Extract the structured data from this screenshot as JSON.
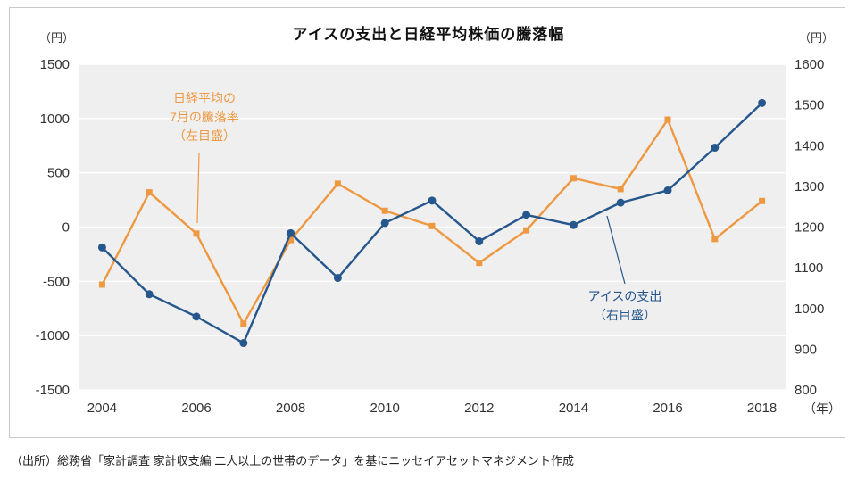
{
  "title": "アイスの支出と日経平均株価の騰落幅",
  "axes": {
    "left_unit": "（円）",
    "right_unit": "（円）",
    "x_unit": "（年）"
  },
  "annotations": {
    "nikkei": [
      "日経平均の",
      "7月の騰落率",
      "（左目盛）"
    ],
    "ice": [
      "アイスの支出",
      "（右目盛）"
    ]
  },
  "source": "（出所）総務省「家計調査 家計収支編 二人以上の世帯のデータ」を基にニッセイアセットマネジメント作成",
  "colors": {
    "nikkei": "#EE9841",
    "ice": "#26578C",
    "plot_bg": "#EFEFEF",
    "grid": "#FFFFFF",
    "frame_border": "#C9C9C9",
    "tick_text": "#333333"
  },
  "chart_data": {
    "type": "line",
    "title": "アイスの支出と日経平均株価の騰落幅",
    "x": [
      2004,
      2005,
      2006,
      2007,
      2008,
      2009,
      2010,
      2011,
      2012,
      2013,
      2014,
      2015,
      2016,
      2017,
      2018
    ],
    "x_tick_labels": [
      "2004",
      "2006",
      "2008",
      "2010",
      "2012",
      "2014",
      "2016",
      "2018"
    ],
    "x_tick_step": 2,
    "xlabel": "（年）",
    "grid": true,
    "legend_position": "inline-annotations",
    "left_axis": {
      "unit": "（円）",
      "min": -1500,
      "max": 1500,
      "ticks": [
        1500,
        1000,
        500,
        0,
        -500,
        -1000,
        -1500
      ]
    },
    "right_axis": {
      "unit": "（円）",
      "min": 800,
      "max": 1600,
      "ticks": [
        1600,
        1500,
        1400,
        1300,
        1200,
        1100,
        1000,
        900,
        800
      ]
    },
    "series": [
      {
        "name": "日経平均の7月の騰落率（左目盛）",
        "axis": "left",
        "marker": "square",
        "color": "#EE9841",
        "values": [
          -530,
          320,
          -60,
          -890,
          -120,
          400,
          150,
          10,
          -330,
          -30,
          450,
          350,
          990,
          -110,
          240
        ]
      },
      {
        "name": "アイスの支出（右目盛）",
        "axis": "right",
        "marker": "circle",
        "color": "#26578C",
        "values": [
          1150,
          1035,
          980,
          915,
          1185,
          1075,
          1210,
          1265,
          1165,
          1230,
          1205,
          1260,
          1290,
          1395,
          1505
        ]
      }
    ]
  }
}
